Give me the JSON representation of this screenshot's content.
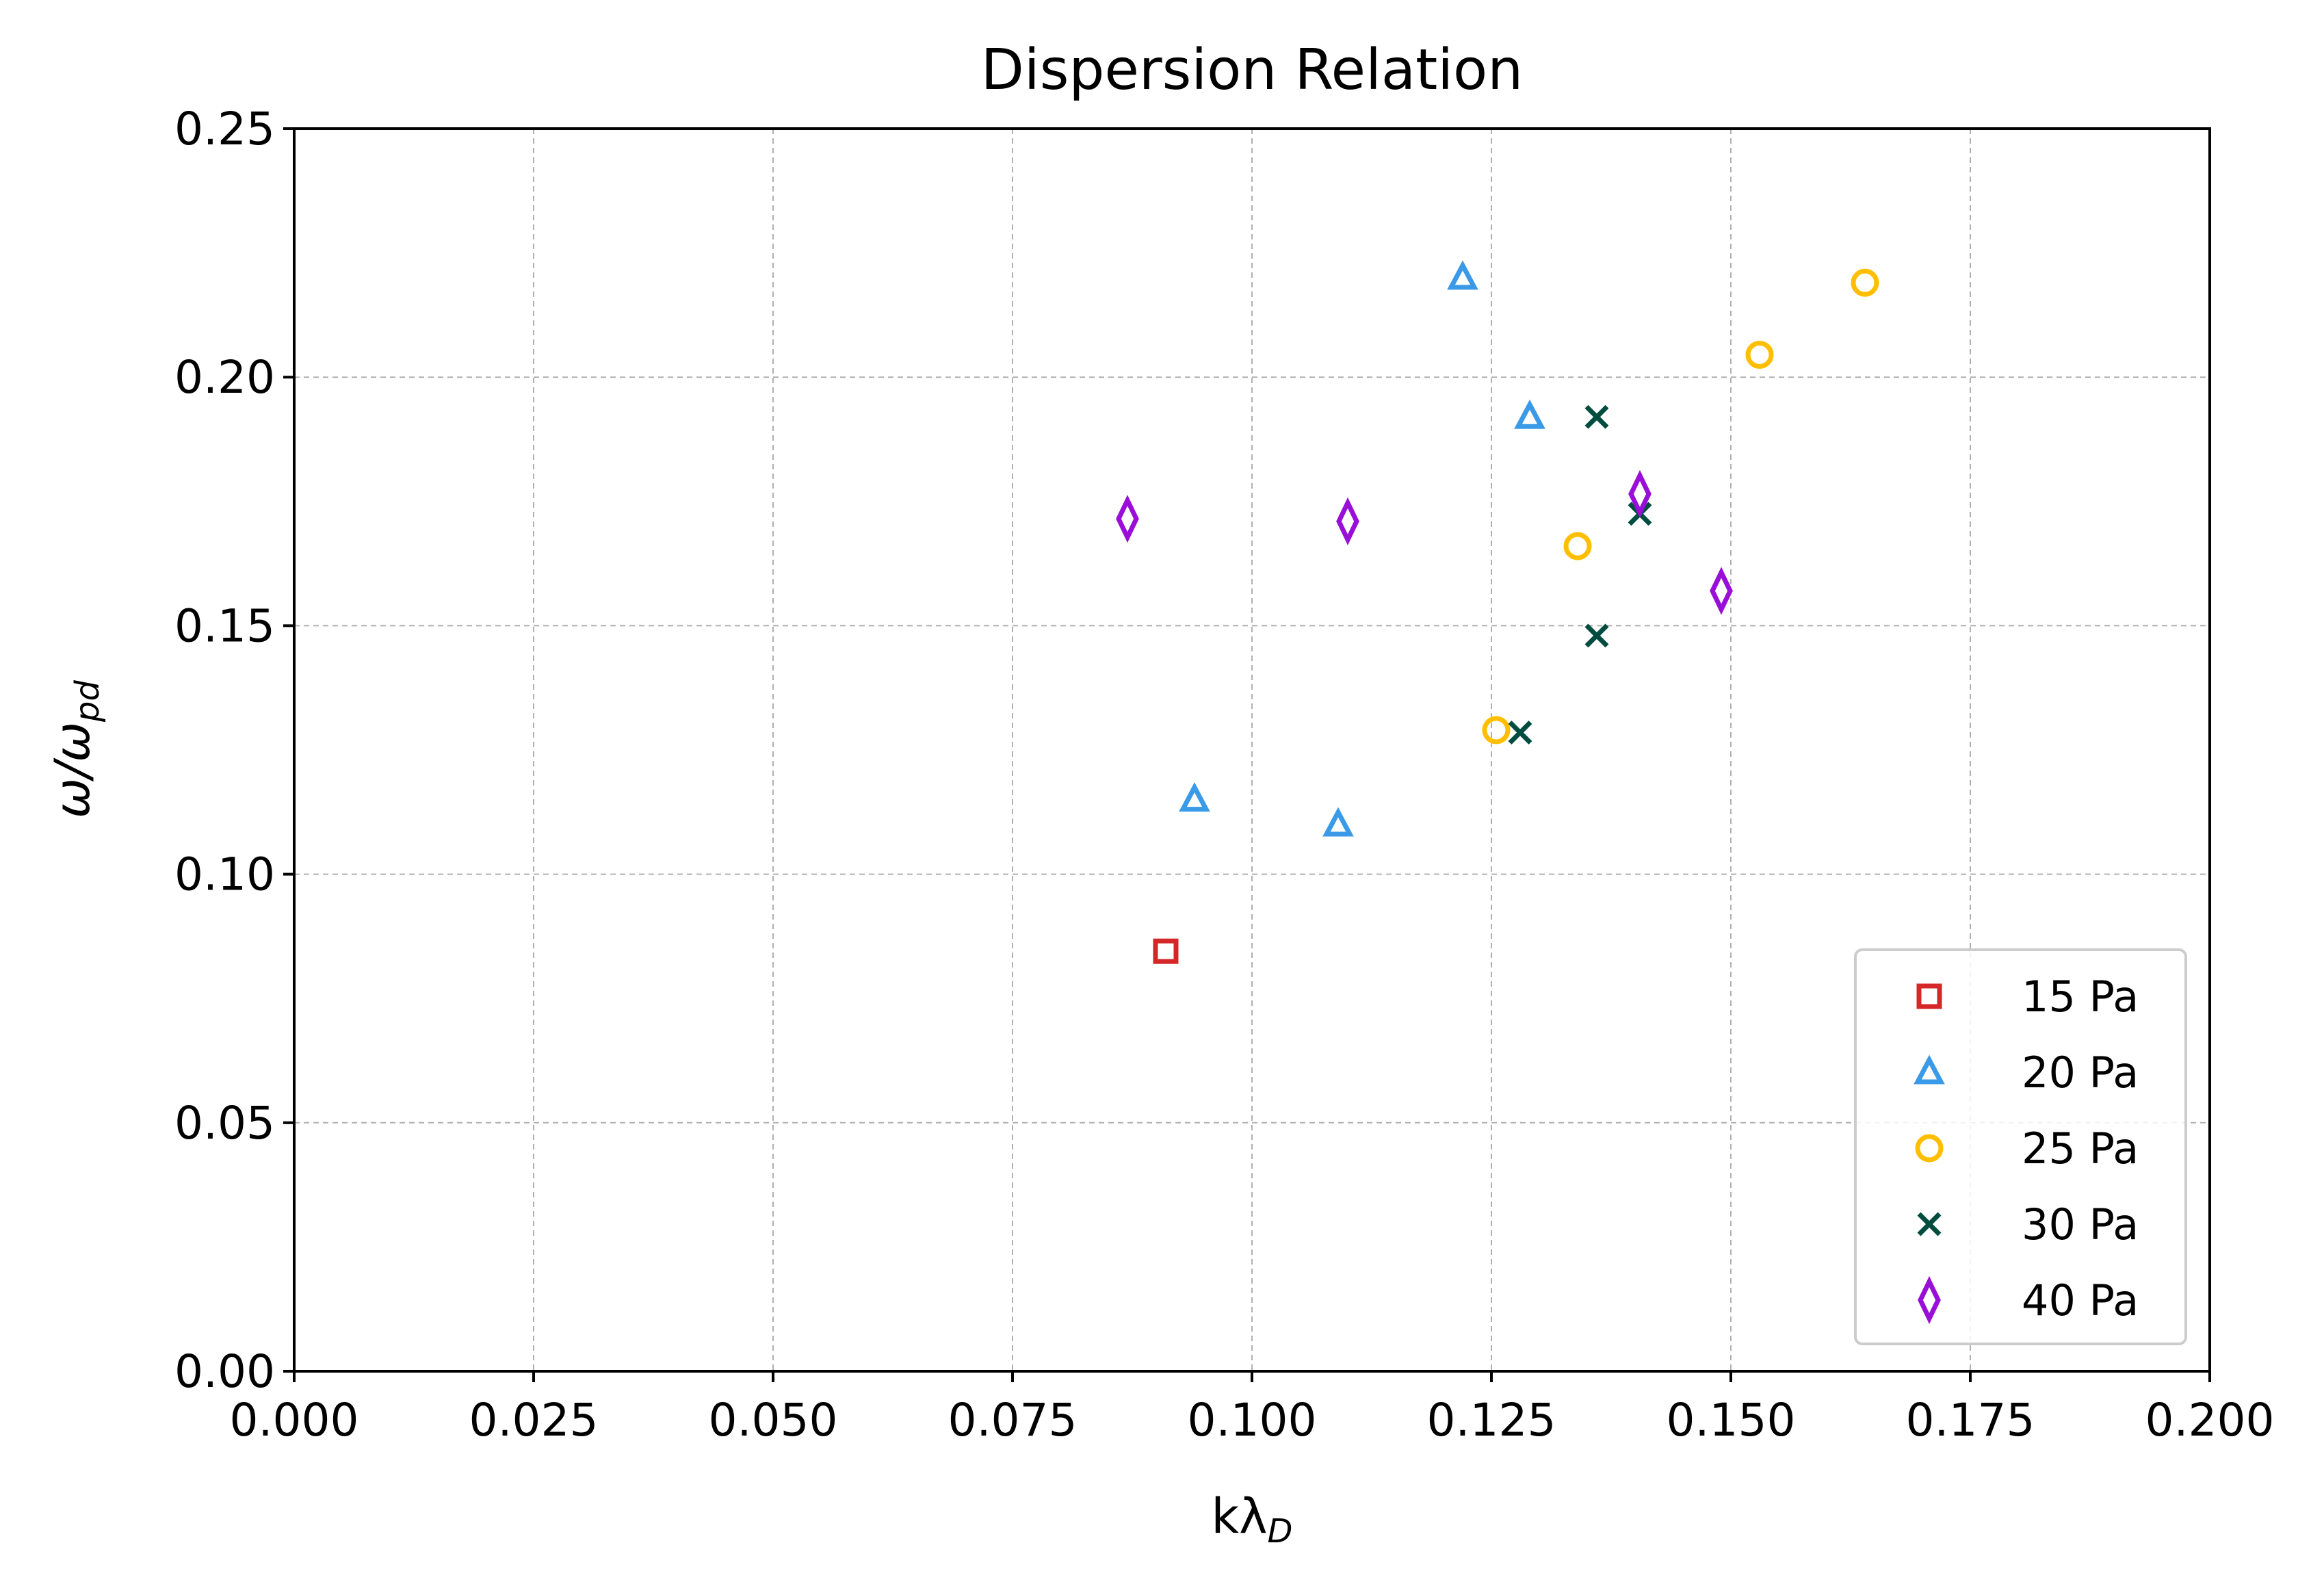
{
  "chart_data": {
    "type": "scatter",
    "title": "Dispersion Relation",
    "xlabel": {
      "main": "kλ",
      "sub": "D"
    },
    "ylabel": {
      "main": "ω/ω",
      "sub": "pd"
    },
    "xlim": [
      0.0,
      0.2
    ],
    "ylim": [
      0.0,
      0.25
    ],
    "xticks": [
      "0.000",
      "0.025",
      "0.050",
      "0.075",
      "0.100",
      "0.125",
      "0.150",
      "0.175",
      "0.200"
    ],
    "yticks": [
      "0.00",
      "0.05",
      "0.10",
      "0.15",
      "0.20",
      "0.25"
    ],
    "grid": true,
    "legend_position": "lower-right",
    "series": [
      {
        "name": "15 Pa",
        "marker": "square",
        "color": "#d62728",
        "points": [
          [
            0.091,
            0.0845
          ]
        ]
      },
      {
        "name": "20 Pa",
        "marker": "triangle",
        "color": "#3a9ae8",
        "points": [
          [
            0.122,
            0.22
          ],
          [
            0.129,
            0.192
          ],
          [
            0.094,
            0.115
          ],
          [
            0.109,
            0.11
          ]
        ]
      },
      {
        "name": "25 Pa",
        "marker": "circle",
        "color": "#ffbf00",
        "points": [
          [
            0.164,
            0.219
          ],
          [
            0.153,
            0.2045
          ],
          [
            0.134,
            0.166
          ],
          [
            0.1255,
            0.129
          ]
        ]
      },
      {
        "name": "30 Pa",
        "marker": "x",
        "color": "#004d40",
        "points": [
          [
            0.136,
            0.192
          ],
          [
            0.1405,
            0.1725
          ],
          [
            0.136,
            0.148
          ],
          [
            0.128,
            0.1285
          ]
        ]
      },
      {
        "name": "40 Pa",
        "marker": "diamond",
        "color": "#9a0fd8",
        "points": [
          [
            0.087,
            0.1715
          ],
          [
            0.11,
            0.171
          ],
          [
            0.1405,
            0.1765
          ],
          [
            0.149,
            0.157
          ]
        ]
      }
    ]
  }
}
